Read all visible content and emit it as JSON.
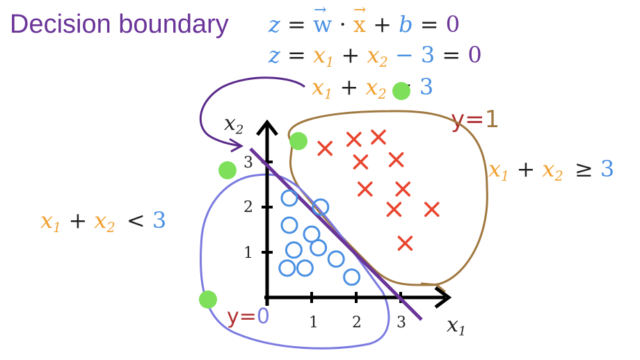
{
  "title": "Decision boundary",
  "equations": {
    "line1": {
      "z": "z",
      "eq": "=",
      "w": "w",
      "dot": "·",
      "x": "x",
      "plus": "+",
      "b": "b",
      "eq2": "=",
      "zero": "0"
    },
    "line2": {
      "z": "z",
      "eq": "=",
      "x1": "x",
      "x1sub": "1",
      "plus": "+",
      "x2": "x",
      "x2sub": "2",
      "minus": "−",
      "three": "3",
      "eq2": "=",
      "zero": "0"
    },
    "line3": {
      "x1": "x",
      "x1sub": "1",
      "plus": "+",
      "x2": "x",
      "x2sub": "2",
      "eq": "=",
      "three": "3"
    }
  },
  "regions": {
    "right": {
      "x1": "x",
      "x1sub": "1",
      "plus": "+",
      "x2": "x",
      "x2sub": "2",
      "op": "≥",
      "value": "3"
    },
    "left": {
      "x1": "x",
      "x1sub": "1",
      "plus": "+",
      "x2": "x",
      "x2sub": "2",
      "op": "<",
      "value": "3"
    }
  },
  "class_labels": {
    "positive": {
      "y": "y",
      "eq": "=",
      "value": "1"
    },
    "negative": {
      "y": "y",
      "eq": "=",
      "value": "0"
    }
  },
  "axes": {
    "x_label": "x",
    "x_sub": "1",
    "y_label": "x",
    "y_sub": "2",
    "x_ticks": [
      "1",
      "2",
      "3"
    ],
    "y_ticks": [
      "1",
      "2",
      "3"
    ]
  },
  "colors": {
    "purple": "#6a3499",
    "blue": "#4a90e2",
    "orange": "#f0a030",
    "red_cross": "#e8452e",
    "green": "#7ee05a",
    "brown": "#a07840",
    "lasso_blue": "#7a7ae0"
  },
  "points": {
    "circles": [
      [
        0.5,
        2.2
      ],
      [
        1.2,
        2.0
      ],
      [
        0.5,
        1.6
      ],
      [
        1.0,
        1.4
      ],
      [
        0.6,
        1.05
      ],
      [
        1.15,
        1.1
      ],
      [
        0.45,
        0.65
      ],
      [
        0.85,
        0.65
      ],
      [
        1.55,
        0.85
      ],
      [
        1.9,
        0.45
      ]
    ],
    "crosses": [
      [
        1.3,
        3.3
      ],
      [
        1.95,
        3.5
      ],
      [
        2.5,
        3.55
      ],
      [
        2.1,
        3.0
      ],
      [
        2.9,
        3.05
      ],
      [
        2.2,
        2.4
      ],
      [
        3.05,
        2.4
      ],
      [
        2.85,
        1.95
      ],
      [
        3.7,
        1.95
      ],
      [
        3.1,
        1.2
      ]
    ]
  }
}
